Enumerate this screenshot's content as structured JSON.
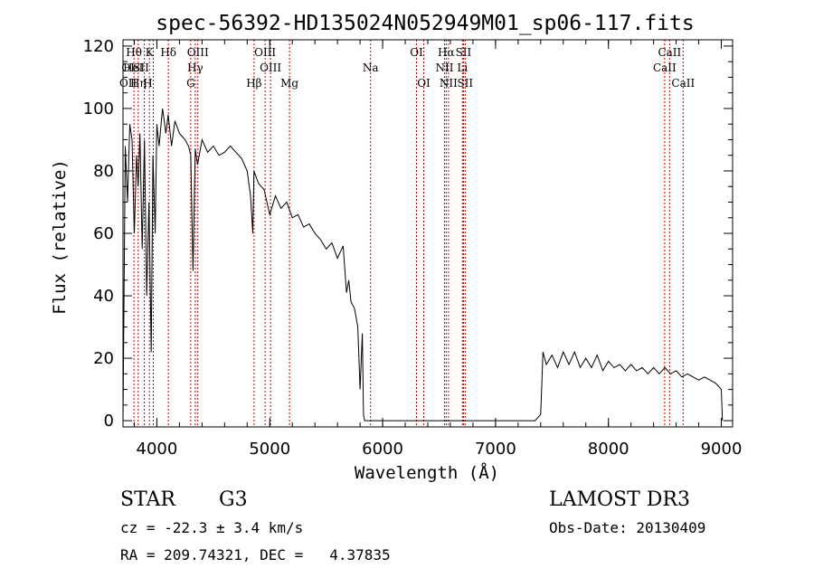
{
  "chart_data": {
    "type": "line",
    "title": "spec-56392-HD135024N052949M01_sp06-117.fits",
    "xlabel": "Wavelength (Å)",
    "ylabel": "Flux (relative)",
    "xlim": [
      3700,
      9100
    ],
    "ylim": [
      -2,
      122
    ],
    "xticks": [
      4000,
      5000,
      6000,
      7000,
      8000,
      9000
    ],
    "yticks": [
      0,
      20,
      40,
      60,
      80,
      100,
      120
    ],
    "line_color": "#000000",
    "marker_color": "#cc0000",
    "series": [
      {
        "x": [
          3700,
          3720,
          3740,
          3760,
          3780,
          3800,
          3820,
          3835,
          3850,
          3870,
          3890,
          3910,
          3930,
          3950,
          3965,
          3985,
          4000,
          4020,
          4050,
          4080,
          4100,
          4130,
          4160,
          4200,
          4250,
          4280,
          4300,
          4320,
          4340,
          4360,
          4400,
          4450,
          4500,
          4550,
          4600,
          4650,
          4700,
          4750,
          4800,
          4830,
          4850,
          4860,
          4870,
          4900,
          4950,
          5000,
          5050,
          5100,
          5150,
          5200,
          5250,
          5300,
          5350,
          5400,
          5450,
          5500,
          5550,
          5600,
          5650,
          5680,
          5700,
          5720,
          5750,
          5780,
          5800,
          5820,
          5830,
          5840,
          5850,
          5900,
          6000,
          6500,
          7000,
          7200,
          7250,
          7300,
          7350,
          7400,
          7410,
          7420,
          7450,
          7500,
          7550,
          7600,
          7650,
          7700,
          7750,
          7800,
          7850,
          7900,
          7950,
          8000,
          8050,
          8100,
          8150,
          8200,
          8250,
          8300,
          8350,
          8400,
          8450,
          8500,
          8550,
          8600,
          8650,
          8700,
          8750,
          8800,
          8850,
          8900,
          8950,
          9000,
          9010
        ],
        "y": [
          0,
          88,
          70,
          95,
          90,
          60,
          85,
          75,
          92,
          55,
          90,
          40,
          70,
          22,
          85,
          60,
          95,
          88,
          100,
          92,
          98,
          88,
          96,
          92,
          90,
          88,
          85,
          48,
          87,
          82,
          90,
          86,
          88,
          85,
          86,
          88,
          86,
          84,
          80,
          72,
          60,
          80,
          79,
          76,
          74,
          66,
          72,
          68,
          70,
          65,
          66,
          62,
          63,
          60,
          58,
          55,
          57,
          52,
          56,
          41,
          45,
          38,
          36,
          30,
          10,
          28,
          2,
          0,
          0,
          0,
          0,
          0,
          0,
          0,
          0,
          0,
          0,
          2,
          12,
          22,
          18,
          21,
          17,
          22,
          18,
          22,
          17,
          20,
          17,
          21,
          16,
          19,
          17,
          18,
          16,
          18,
          16,
          17,
          15,
          17,
          15,
          17,
          15,
          16,
          14,
          15,
          14,
          13,
          14,
          13,
          12,
          10,
          0
        ]
      }
    ],
    "line_markers": [
      {
        "x": 3797,
        "label": "Hθ",
        "row": 0
      },
      {
        "x": 3835,
        "label": "",
        "row": 0
      },
      {
        "x": 3889,
        "label": "",
        "row": 0
      },
      {
        "x": 3934,
        "label": "K",
        "row": 0
      },
      {
        "x": 3968,
        "label": "",
        "row": 0
      },
      {
        "x": 4102,
        "label": "Hδ",
        "row": 0
      },
      {
        "x": 4300,
        "label": "",
        "row": 0
      },
      {
        "x": 4340,
        "label": "",
        "row": 0
      },
      {
        "x": 4363,
        "label": "OIII",
        "row": 0
      },
      {
        "x": 4861,
        "label": "Hβ",
        "row": 2
      },
      {
        "x": 4959,
        "label": "OIII",
        "row": 0
      },
      {
        "x": 5007,
        "label": "OIII",
        "row": 1
      },
      {
        "x": 5175,
        "label": "Mg",
        "row": 2
      },
      {
        "x": 5893,
        "label": "Na",
        "row": 1
      },
      {
        "x": 6300,
        "label": "OI",
        "row": 0
      },
      {
        "x": 6364,
        "label": "OI",
        "row": 2
      },
      {
        "x": 6548,
        "label": "NII",
        "row": 1
      },
      {
        "x": 6563,
        "label": "Hα",
        "row": 0
      },
      {
        "x": 6583,
        "label": "NII",
        "row": 2
      },
      {
        "x": 6707,
        "label": "Li",
        "row": 1
      },
      {
        "x": 6716,
        "label": "SII",
        "row": 0
      },
      {
        "x": 6731,
        "label": "SII",
        "row": 2
      },
      {
        "x": 8498,
        "label": "CaII",
        "row": 1
      },
      {
        "x": 8542,
        "label": "CaII",
        "row": 0
      },
      {
        "x": 8662,
        "label": "CaII",
        "row": 2
      }
    ],
    "extra_labels": [
      {
        "x": 3745,
        "row": 1,
        "label": "OI"
      },
      {
        "x": 3790,
        "row": 1,
        "label": "HeI"
      },
      {
        "x": 3860,
        "row": 1,
        "label": "SII"
      },
      {
        "x": 3745,
        "row": 2,
        "label": "OII"
      },
      {
        "x": 3835,
        "row": 2,
        "label": "Hη"
      },
      {
        "x": 3920,
        "row": 2,
        "label": "H"
      },
      {
        "x": 4340,
        "row": 1,
        "label": "Hγ"
      },
      {
        "x": 4300,
        "row": 2,
        "label": "G"
      }
    ]
  },
  "info": {
    "object_class": "STAR",
    "subclass": "G3",
    "survey": "LAMOST DR3",
    "cz": "cz = -22.3 ± 3.4 km/s",
    "obs_date": "Obs-Date: 20130409",
    "coords": "RA = 209.74321, DEC =   4.37835"
  }
}
